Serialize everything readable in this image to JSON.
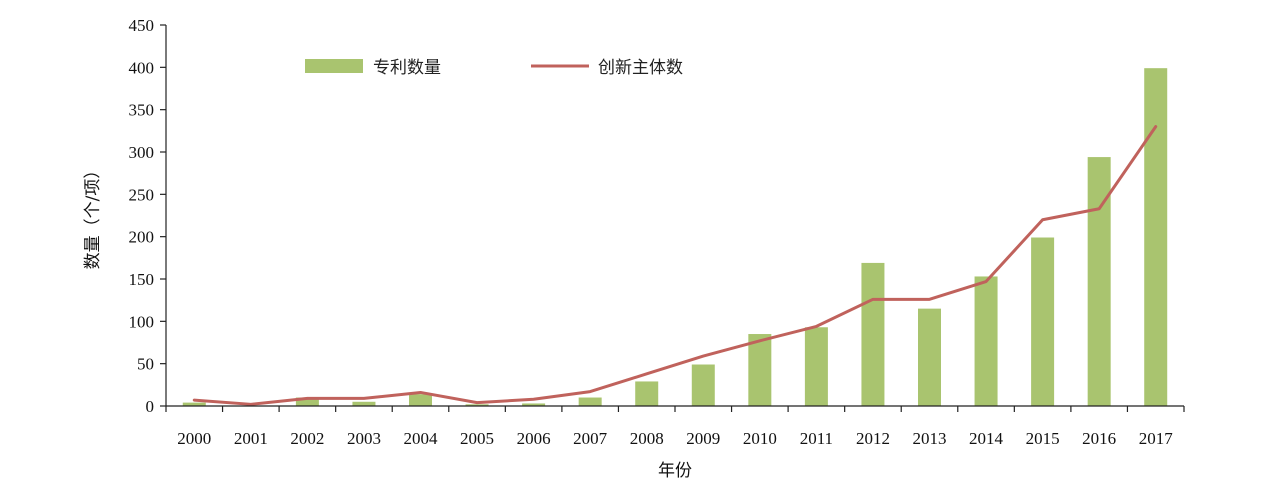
{
  "chart_data": {
    "type": "bar",
    "title": "",
    "xlabel": "年份",
    "ylabel": "数量（个/项）",
    "ylim": [
      0,
      450
    ],
    "yticks": [
      0,
      50,
      100,
      150,
      200,
      250,
      300,
      350,
      400,
      450
    ],
    "grid": false,
    "legend_position": "top",
    "categories": [
      "2000",
      "2001",
      "2002",
      "2003",
      "2004",
      "2005",
      "2006",
      "2007",
      "2008",
      "2009",
      "2010",
      "2011",
      "2012",
      "2013",
      "2014",
      "2015",
      "2016",
      "2017"
    ],
    "series": [
      {
        "name": "专利数量",
        "type": "bar",
        "color": "#a9c46f",
        "values": [
          4,
          0,
          10,
          5,
          14,
          2,
          3,
          10,
          29,
          49,
          85,
          93,
          169,
          115,
          153,
          199,
          294,
          399
        ]
      },
      {
        "name": "创新主体数",
        "type": "line",
        "color": "#c0625c",
        "values": [
          7,
          2,
          9,
          9,
          16,
          4,
          8,
          17,
          38,
          59,
          77,
          94,
          126,
          126,
          147,
          220,
          233,
          330
        ]
      }
    ]
  }
}
